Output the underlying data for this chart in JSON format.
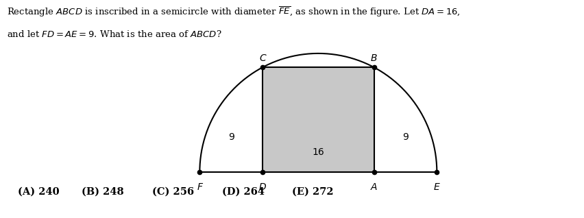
{
  "bg_color": "#ffffff",
  "rect_fill": "#c8c8c8",
  "rect_edge": "#000000",
  "FD": 9,
  "DA": 16,
  "AE": 9,
  "answer_labels": [
    "(A)",
    "(B)",
    "(C)",
    "(D)",
    "(E)"
  ],
  "answer_values": [
    "240",
    "248",
    "256",
    "264",
    "272"
  ],
  "label_9_left": "9",
  "label_16": "16",
  "label_9_right": "9",
  "pt_labels_bottom": [
    "F",
    "D",
    "A",
    "E"
  ],
  "pt_labels_top": [
    "C",
    "B"
  ],
  "fig_width": 8.52,
  "fig_height": 3.18,
  "dpi": 100
}
